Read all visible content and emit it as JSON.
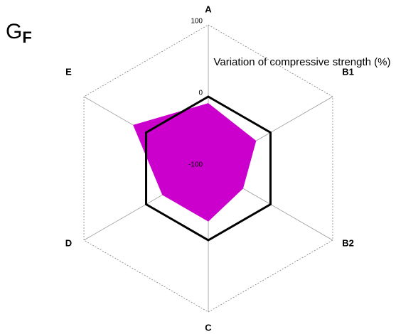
{
  "chart_data": {
    "type": "radar",
    "title": "Variation of compressive strength  (%)",
    "annotation": {
      "main": "G",
      "sub": "F"
    },
    "categories": [
      "A",
      "B1",
      "B2",
      "C",
      "D",
      "E"
    ],
    "series": [
      {
        "name": "GF",
        "color": "#cc00cc",
        "values": [
          -9,
          -23,
          -44,
          -26,
          -26,
          21
        ]
      }
    ],
    "ylim": [
      -100,
      100
    ],
    "yticks": [
      -100,
      0,
      100
    ]
  }
}
